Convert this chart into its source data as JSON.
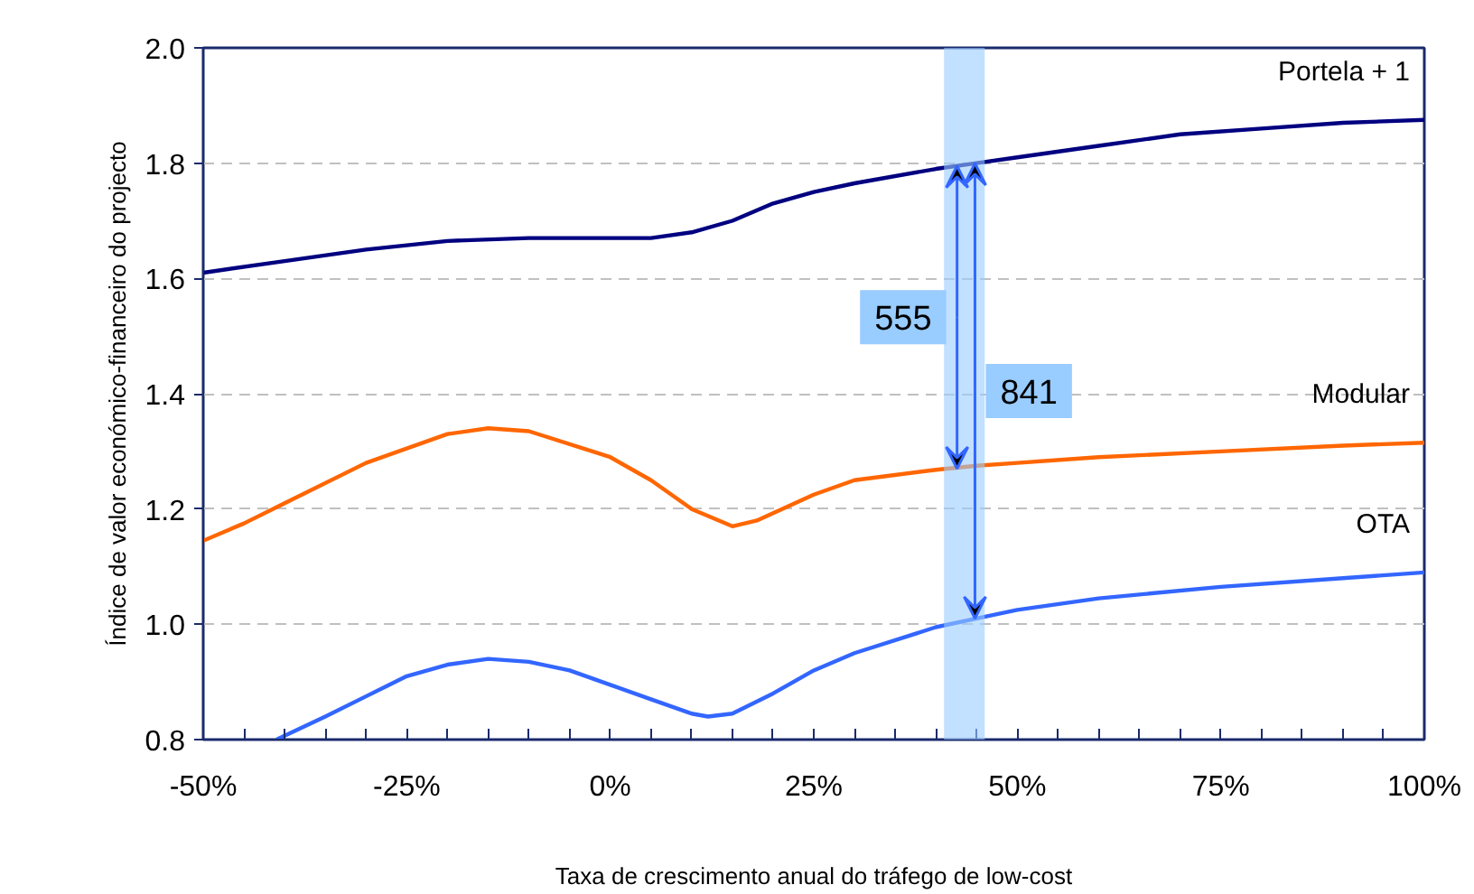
{
  "chart_data": {
    "type": "line",
    "xlabel": "Taxa de crescimento anual do tráfego de low-cost",
    "ylabel": "Índice de valor económico-financeiro do projecto",
    "series": [
      {
        "name": "Portela + 1",
        "color": "#000080",
        "x": [
          -50,
          -40,
          -30,
          -20,
          -10,
          0,
          5,
          10,
          15,
          20,
          25,
          30,
          40,
          45,
          50,
          60,
          70,
          80,
          90,
          100
        ],
        "values": [
          1.61,
          1.63,
          1.65,
          1.665,
          1.67,
          1.67,
          1.67,
          1.68,
          1.7,
          1.73,
          1.75,
          1.765,
          1.79,
          1.8,
          1.81,
          1.83,
          1.85,
          1.86,
          1.87,
          1.875
        ]
      },
      {
        "name": "Modular",
        "color": "#ff6600",
        "x": [
          -50,
          -45,
          -40,
          -30,
          -20,
          -15,
          -10,
          0,
          5,
          10,
          15,
          18,
          25,
          30,
          40,
          45,
          50,
          60,
          75,
          90,
          100
        ],
        "values": [
          1.145,
          1.175,
          1.21,
          1.28,
          1.33,
          1.34,
          1.335,
          1.29,
          1.25,
          1.2,
          1.17,
          1.18,
          1.225,
          1.25,
          1.268,
          1.275,
          1.28,
          1.29,
          1.3,
          1.31,
          1.315
        ]
      },
      {
        "name": "OTA",
        "color": "#3366ff",
        "x": [
          -41,
          -35,
          -30,
          -25,
          -20,
          -15,
          -10,
          -5,
          0,
          5,
          10,
          12,
          15,
          20,
          25,
          30,
          40,
          45,
          50,
          60,
          75,
          90,
          100
        ],
        "values": [
          0.8,
          0.84,
          0.875,
          0.91,
          0.93,
          0.94,
          0.935,
          0.92,
          0.895,
          0.87,
          0.845,
          0.84,
          0.845,
          0.88,
          0.92,
          0.95,
          0.995,
          1.01,
          1.025,
          1.045,
          1.065,
          1.08,
          1.09
        ]
      }
    ],
    "xlim": [
      -50,
      100
    ],
    "xticks": [
      {
        "value": -50,
        "label": "-50%"
      },
      {
        "value": -25,
        "label": "-25%"
      },
      {
        "value": 0,
        "label": "0%"
      },
      {
        "value": 25,
        "label": "25%"
      },
      {
        "value": 50,
        "label": "50%"
      },
      {
        "value": 75,
        "label": "75%"
      },
      {
        "value": 100,
        "label": "100%"
      }
    ],
    "ylim": [
      0.8,
      2.0
    ],
    "yticks": [
      0.8,
      {
        "value": 1.0,
        "label": "1.0"
      },
      1.2,
      1.4,
      1.6,
      1.8,
      {
        "value": 2.0,
        "label": "2.0"
      }
    ],
    "grid": "y",
    "line_style": "solid",
    "bands": [
      {
        "axis": "x",
        "from": 41,
        "to": 46,
        "color": "#99ccff"
      }
    ],
    "annotations": [
      {
        "text": "555",
        "x": 42.6,
        "y": 1.27
      },
      {
        "text": "841",
        "x": 44.8,
        "y": 1.01
      }
    ]
  }
}
